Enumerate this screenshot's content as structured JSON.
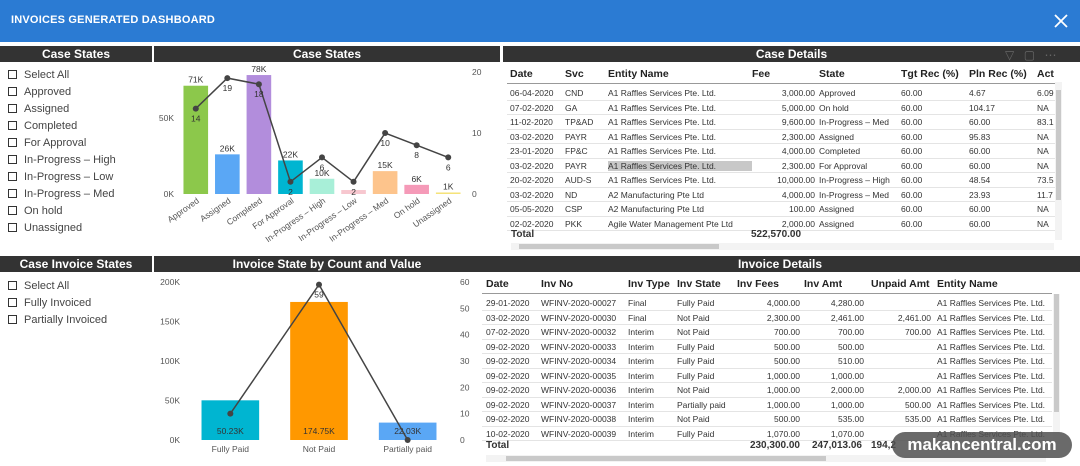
{
  "app": {
    "title": "INVOICES GENERATED DASHBOARD",
    "close_icon": "close-icon"
  },
  "panels": {
    "case_states_slicer": "Case States",
    "case_states_chart": "Case States",
    "case_details": "Case Details",
    "case_invoice_states": "Case Invoice States",
    "invoice_state_chart": "Invoice State by Count and Value",
    "invoice_details": "Invoice Details"
  },
  "case_slicer": {
    "items": [
      "Select All",
      "Approved",
      "Assigned",
      "Completed",
      "For Approval",
      "In-Progress – High",
      "In-Progress – Low",
      "In-Progress – Med",
      "On hold",
      "Unassigned"
    ]
  },
  "invoice_slicer": {
    "items": [
      "Select All",
      "Fully Invoiced",
      "Partially Invoiced"
    ]
  },
  "chart_data": [
    {
      "type": "bar",
      "categories": [
        "Approved",
        "Assigned",
        "Completed",
        "For Approval",
        "In-Progress – High",
        "In-Progress – Low",
        "In-Progress – Med",
        "On hold",
        "Unassigned"
      ],
      "series": [
        {
          "values": [
            71000,
            26000,
            78000,
            22000,
            10000,
            2600,
            15000,
            6000,
            1000
          ],
          "labels": [
            "71K",
            "26K",
            "78K",
            "22K",
            "10K",
            "",
            "15K",
            "6K",
            "1K"
          ],
          "colors": [
            "#8cc84b",
            "#5aa7f5",
            "#b28ddc",
            "#00b5d1",
            "#a8efd8",
            "#f7c7cf",
            "#fdc48c",
            "#f59ab8",
            "#f5e37a"
          ]
        },
        {
          "values": [
            14,
            19,
            18,
            2,
            6,
            2,
            10,
            8,
            6
          ],
          "labels": [
            "14",
            "19",
            "18",
            "2",
            "6",
            "2",
            "10",
            "8",
            "6"
          ]
        }
      ],
      "y_left_ticks": [
        "0K",
        "50K"
      ],
      "y_right_ticks": [
        "0",
        "10",
        "20"
      ],
      "ylim_left": [
        0,
        80000
      ],
      "ylim_right": [
        0,
        20
      ]
    },
    {
      "type": "bar",
      "categories": [
        "Fully Paid",
        "Not Paid",
        "Partially paid"
      ],
      "series": [
        {
          "values": [
            50230,
            174750,
            22030
          ],
          "labels": [
            "50.23K",
            "174.75K",
            "22.03K"
          ],
          "colors": [
            "#00b5d1",
            "#ff9800",
            "#5aa7f5"
          ]
        },
        {
          "values": [
            10,
            59,
            0
          ],
          "labels": [
            "",
            "59",
            ""
          ]
        }
      ],
      "y_left_ticks": [
        "0K",
        "50K",
        "100K",
        "150K",
        "200K"
      ],
      "y_right_ticks": [
        "0",
        "10",
        "20",
        "30",
        "40",
        "50",
        "60"
      ],
      "ylim_left": [
        0,
        200000
      ],
      "ylim_right": [
        0,
        60
      ]
    }
  ],
  "case_details": {
    "columns": [
      "Date",
      "Svc",
      "Entity Name",
      "Fee",
      "State",
      "Tgt Rec (%)",
      "Pln Rec (%)",
      "Act"
    ],
    "rows": [
      [
        "06-04-2020",
        "CND",
        "A1 Raffles Services Pte. Ltd.",
        "3,000.00",
        "Approved",
        "60.00",
        "4.67",
        "6.09"
      ],
      [
        "07-02-2020",
        "GA",
        "A1 Raffles Services Pte. Ltd.",
        "5,000.00",
        "On hold",
        "60.00",
        "104.17",
        "NA"
      ],
      [
        "11-02-2020",
        "TP&AD",
        "A1 Raffles Services Pte. Ltd.",
        "9,600.00",
        "In-Progress – Med",
        "60.00",
        "60.00",
        "83.1"
      ],
      [
        "03-02-2020",
        "PAYR",
        "A1 Raffles Services Pte. Ltd.",
        "2,300.00",
        "Assigned",
        "60.00",
        "95.83",
        "NA"
      ],
      [
        "23-01-2020",
        "FP&C",
        "A1 Raffles Services Pte. Ltd.",
        "4,000.00",
        "Completed",
        "60.00",
        "60.00",
        "NA"
      ],
      [
        "03-02-2020",
        "PAYR",
        "A1 Raffles Services Pte. Ltd.",
        "2,300.00",
        "For Approval",
        "60.00",
        "60.00",
        "NA"
      ],
      [
        "20-02-2020",
        "AUD-S",
        "A1 Raffles Services Pte. Ltd.",
        "10,000.00",
        "In-Progress – High",
        "60.00",
        "48.54",
        "73.5"
      ],
      [
        "03-02-2020",
        "ND",
        "A2 Manufacturing Pte Ltd",
        "4,000.00",
        "In-Progress – Med",
        "60.00",
        "23.93",
        "11.7"
      ],
      [
        "05-05-2020",
        "CSP",
        "A2 Manufacturing Pte Ltd",
        "100.00",
        "Assigned",
        "60.00",
        "60.00",
        "NA"
      ],
      [
        "02-02-2020",
        "PKK",
        "Agile Water Management Pte Ltd",
        "2,000.00",
        "Assigned",
        "60.00",
        "60.00",
        "NA"
      ]
    ],
    "total_label": "Total",
    "total_fee": "522,570.00"
  },
  "invoice_details": {
    "columns": [
      "Date",
      "Inv No",
      "Inv Type",
      "Inv State",
      "Inv Fees",
      "Inv Amt",
      "Unpaid Amt",
      "Entity Name"
    ],
    "rows": [
      [
        "29-01-2020",
        "WFINV-2020-00027",
        "Final",
        "Fully Paid",
        "4,000.00",
        "4,280.00",
        "",
        "A1 Raffles Services Pte. Ltd."
      ],
      [
        "03-02-2020",
        "WFINV-2020-00030",
        "Final",
        "Not Paid",
        "2,300.00",
        "2,461.00",
        "2,461.00",
        "A1 Raffles Services Pte. Ltd."
      ],
      [
        "07-02-2020",
        "WFINV-2020-00032",
        "Interim",
        "Not Paid",
        "700.00",
        "700.00",
        "700.00",
        "A1 Raffles Services Pte. Ltd."
      ],
      [
        "09-02-2020",
        "WFINV-2020-00033",
        "Interim",
        "Fully Paid",
        "500.00",
        "500.00",
        "",
        "A1 Raffles Services Pte. Ltd."
      ],
      [
        "09-02-2020",
        "WFINV-2020-00034",
        "Interim",
        "Fully Paid",
        "500.00",
        "510.00",
        "",
        "A1 Raffles Services Pte. Ltd."
      ],
      [
        "09-02-2020",
        "WFINV-2020-00035",
        "Interim",
        "Fully Paid",
        "1,000.00",
        "1,000.00",
        "",
        "A1 Raffles Services Pte. Ltd."
      ],
      [
        "09-02-2020",
        "WFINV-2020-00036",
        "Interim",
        "Not Paid",
        "1,000.00",
        "2,000.00",
        "2,000.00",
        "A1 Raffles Services Pte. Ltd."
      ],
      [
        "09-02-2020",
        "WFINV-2020-00037",
        "Interim",
        "Partially paid",
        "1,000.00",
        "1,000.00",
        "500.00",
        "A1 Raffles Services Pte. Ltd."
      ],
      [
        "09-02-2020",
        "WFINV-2020-00038",
        "Interim",
        "Not Paid",
        "500.00",
        "535.00",
        "535.00",
        "A1 Raffles Services Pte. Ltd."
      ],
      [
        "10-02-2020",
        "WFINV-2020-00039",
        "Interim",
        "Fully Paid",
        "1,070.00",
        "1,070.00",
        "",
        "A1 Raffles Services Pte. Ltd."
      ]
    ],
    "total_label": "Total",
    "total_fees": "230,300.00",
    "total_amt": "247,013.06",
    "total_unpaid": "194,2"
  },
  "watermark": "makancentral.com"
}
